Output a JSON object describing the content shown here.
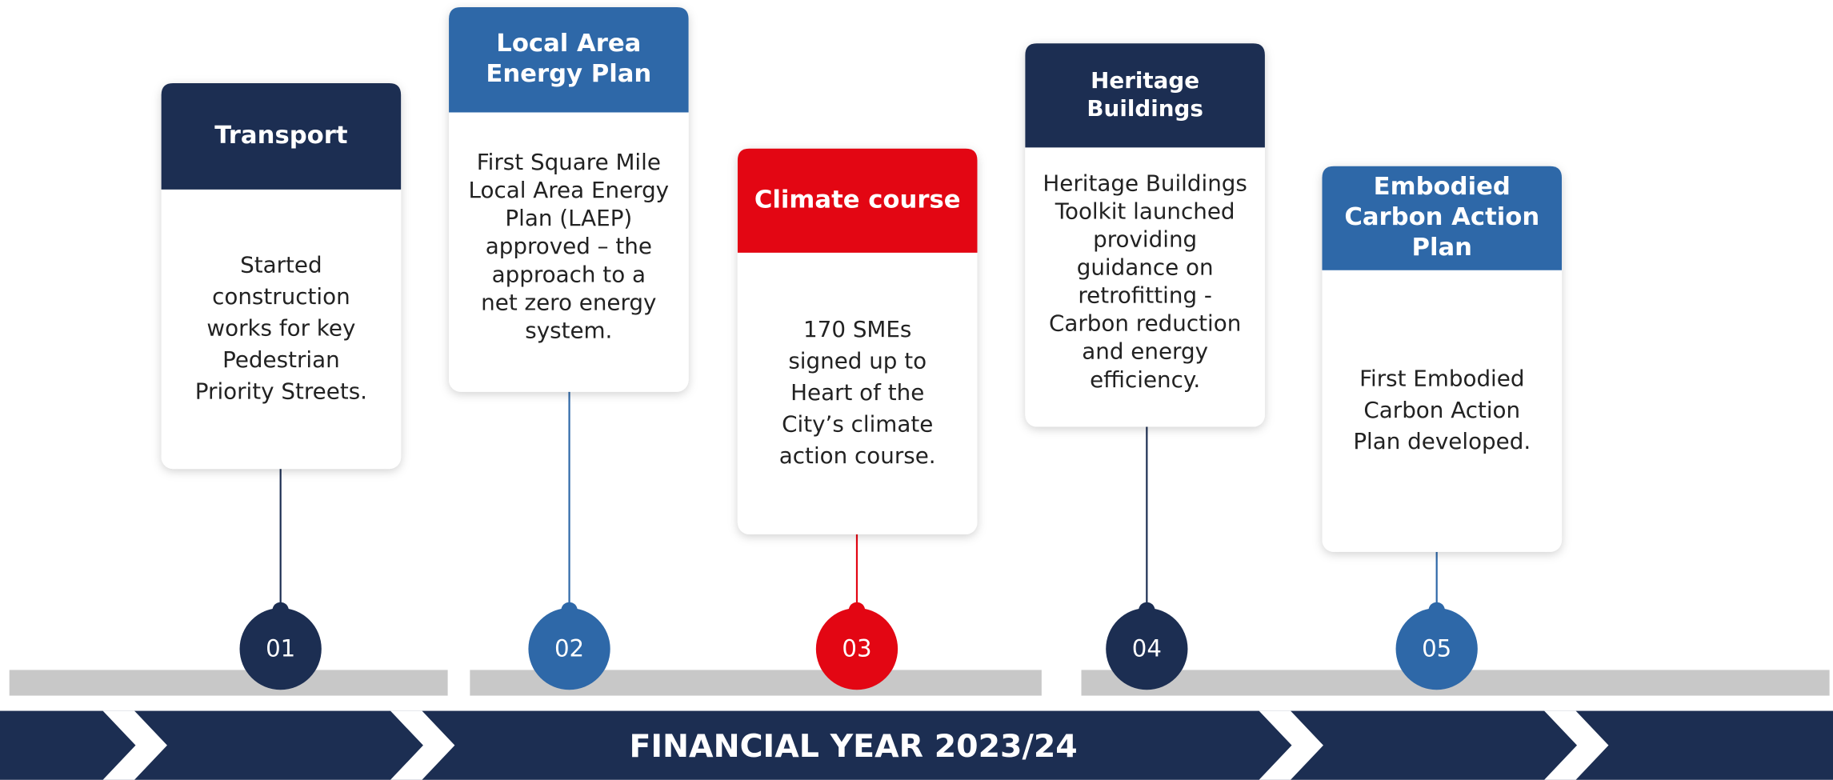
{
  "milestones": [
    {
      "number": "01",
      "title": [
        "Transport"
      ],
      "body": [
        "Started",
        "construction",
        "works for key",
        "Pedestrian",
        "Priority Streets."
      ]
    },
    {
      "number": "02",
      "title": [
        "Local Area",
        "Energy Plan"
      ],
      "body": [
        "First Square Mile",
        "Local Area Energy",
        "Plan (LAEP)",
        "approved – the",
        "approach to a",
        "net zero energy",
        "system."
      ]
    },
    {
      "number": "03",
      "title": [
        "Climate course"
      ],
      "body": [
        "170 SMEs",
        "signed up to",
        "Heart of the",
        "City’s climate",
        "action course."
      ]
    },
    {
      "number": "04",
      "title": [
        "Heritage",
        "Buildings"
      ],
      "body": [
        "Heritage Buildings",
        "Toolkit launched",
        "providing",
        "guidance on",
        "retrofitting -",
        "Carbon reduction",
        "and energy",
        "efficiency."
      ]
    },
    {
      "number": "05",
      "title": [
        "Embodied",
        "Carbon Action",
        "Plan"
      ],
      "body": [
        "First Embodied",
        "Carbon Action",
        "Plan developed."
      ]
    }
  ],
  "footer": "FINANCIAL YEAR 2023/24"
}
